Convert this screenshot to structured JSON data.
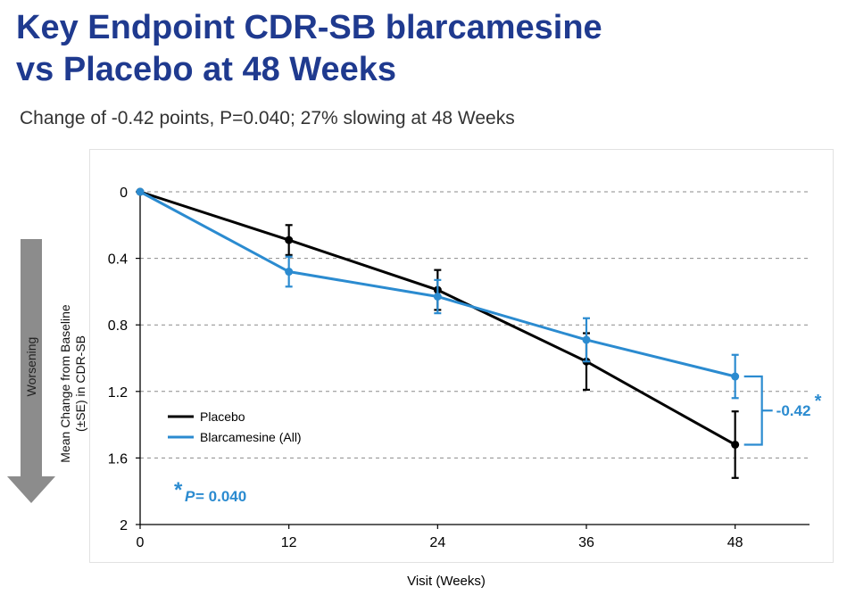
{
  "header": {
    "title_line1": "Key Endpoint CDR-SB blarcamesine",
    "title_line2": "vs Placebo at 48 Weeks",
    "subtitle": "Change of -0.42 points, P=0.040; 27% slowing at 48 Weeks"
  },
  "side_label": "Worsening",
  "colors": {
    "title": "#1f3a8f",
    "placebo": "#000000",
    "blarcamesine": "#2b8bd0"
  },
  "chart_data": {
    "type": "line",
    "xlabel": "Visit (Weeks)",
    "ylabel_line1": "Mean Change from Baseline",
    "ylabel_line2": "(±SE) in CDR-SB",
    "x": [
      0,
      12,
      24,
      36,
      48
    ],
    "xlim": [
      0,
      54
    ],
    "ylim": [
      0,
      2
    ],
    "y_inverted": true,
    "yticks": [
      0,
      0.4,
      0.8,
      1.2,
      1.6,
      2
    ],
    "ytick_labels": [
      "0",
      "0.4",
      "0.8",
      "1.2",
      "1.6",
      "2"
    ],
    "xticks": [
      0,
      12,
      24,
      36,
      48
    ],
    "xtick_labels": [
      "0",
      "12",
      "24",
      "36",
      "48"
    ],
    "grid": "horizontal dashed",
    "legend_position": "lower-left",
    "series": [
      {
        "name": "Placebo",
        "color": "#000000",
        "values": [
          0,
          0.29,
          0.59,
          1.02,
          1.52
        ],
        "se": [
          0,
          0.09,
          0.12,
          0.17,
          0.2
        ]
      },
      {
        "name": "Blarcamesine (All)",
        "color": "#2b8bd0",
        "values": [
          0,
          0.48,
          0.63,
          0.89,
          1.11
        ],
        "se": [
          0,
          0.09,
          0.1,
          0.13,
          0.13
        ]
      }
    ],
    "annotations": {
      "difference": {
        "text": "-0.42",
        "star": "*",
        "at_x": 48
      },
      "pvalue": {
        "star": "*",
        "label": "P",
        "text": " = 0.040"
      }
    }
  }
}
